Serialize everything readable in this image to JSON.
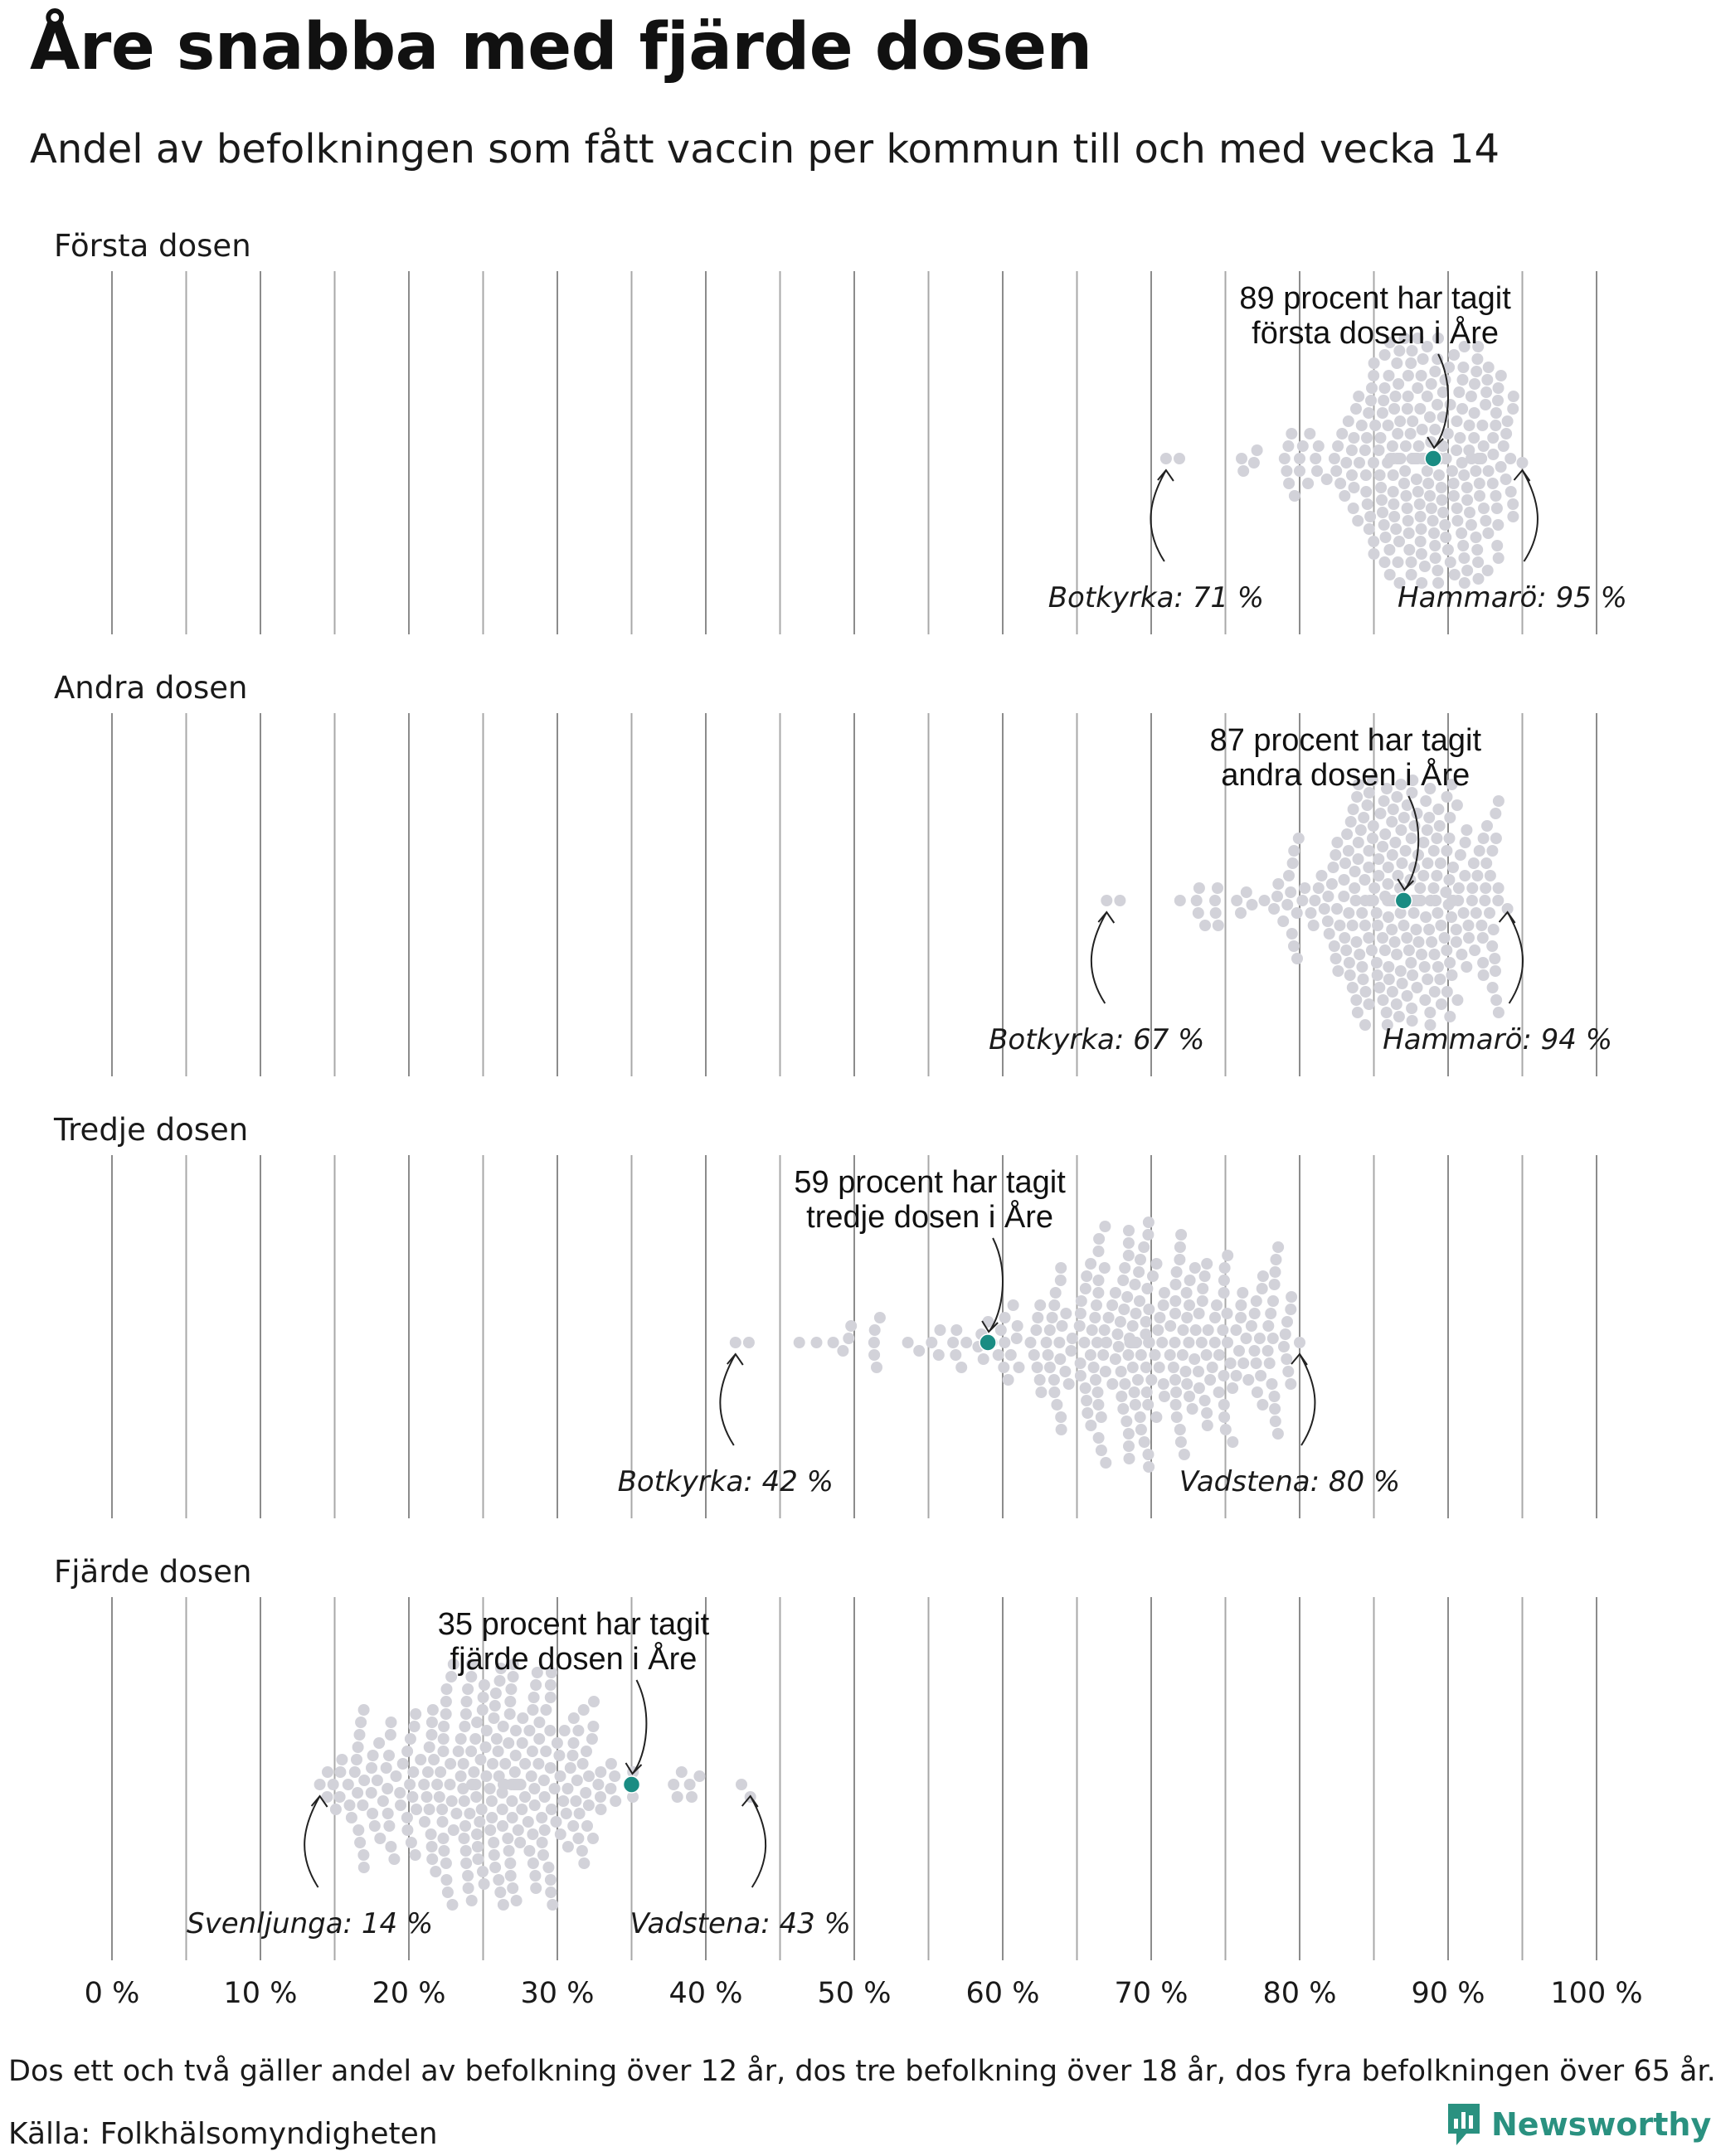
{
  "title": "Åre snabba med fjärde dosen",
  "subtitle": "Andel av befolkningen som fått vaccin per kommun till och med vecka 14",
  "footnote": "Dos ett och två gäller andel av befolkning över 12 år, dos tre befolkning över 18 år, dos fyra befolkningen över 65 år.",
  "source": "Källa: Folkhälsomyndigheten",
  "brand": {
    "name": "Newsworthy",
    "color": "#2a9180",
    "icon": "newsworthy-logo-icon"
  },
  "colors": {
    "dot": "#d2d2d9",
    "highlight": "#1a8c83",
    "grid": "#9a9a9a",
    "text": "#111111"
  },
  "chart_data": {
    "type": "scatter",
    "subtype": "beeswarm",
    "xlim": [
      0,
      100
    ],
    "x_ticks": [
      0,
      10,
      20,
      30,
      40,
      50,
      60,
      70,
      80,
      90,
      100
    ],
    "x_tick_labels": [
      "0 %",
      "10 %",
      "20 %",
      "30 %",
      "40 %",
      "50 %",
      "60 %",
      "70 %",
      "80 %",
      "90 %",
      "100 %"
    ],
    "grid": true,
    "panels": [
      {
        "label": "Första dosen",
        "min": 71,
        "max": 95,
        "mode": 88.5,
        "spread": 4.5,
        "highlight": {
          "name": "Åre",
          "value": 89,
          "note_lines": [
            "89 procent har tagit",
            "första dosen i Åre"
          ]
        },
        "low": {
          "label": "Botkyrka: 71 %",
          "value": 71
        },
        "high": {
          "label": "Hammarö: 95 %",
          "value": 95
        }
      },
      {
        "label": "Andra dosen",
        "min": 67,
        "max": 94,
        "mode": 87,
        "spread": 5,
        "highlight": {
          "name": "Åre",
          "value": 87,
          "note_lines": [
            "87 procent har tagit",
            "andra dosen i Åre"
          ]
        },
        "low": {
          "label": "Botkyrka: 67 %",
          "value": 67
        },
        "high": {
          "label": "Hammarö: 94 %",
          "value": 94
        }
      },
      {
        "label": "Tredje dosen",
        "min": 42,
        "max": 80,
        "mode": 69,
        "spread": 8,
        "highlight": {
          "name": "Åre",
          "value": 59,
          "note_lines": [
            "59 procent har tagit",
            "tredje dosen i Åre"
          ]
        },
        "low": {
          "label": "Botkyrka: 42 %",
          "value": 42
        },
        "high": {
          "label": "Vadstena: 80 %",
          "value": 80
        }
      },
      {
        "label": "Fjärde dosen",
        "min": 14,
        "max": 43,
        "mode": 25.5,
        "spread": 7,
        "highlight": {
          "name": "Åre",
          "value": 35,
          "note_lines": [
            "35 procent har tagit",
            "fjärde dosen i Åre"
          ]
        },
        "low": {
          "label": "Svenljunga: 14 %",
          "value": 14
        },
        "high": {
          "label": "Vadstena: 43 %",
          "value": 43
        }
      }
    ]
  }
}
